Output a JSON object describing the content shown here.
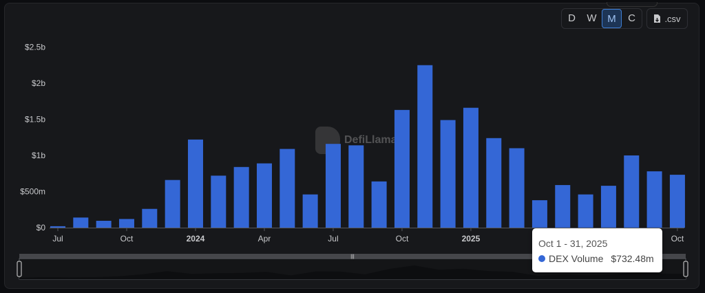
{
  "controls": {
    "intervals": [
      "D",
      "W",
      "M",
      "C"
    ],
    "active": "M",
    "csv_label": ".csv",
    "csv_icon": "file-download-icon"
  },
  "watermark": "DefiLlama",
  "tooltip": {
    "date": "Oct 1 - 31, 2025",
    "series": "DEX Volume",
    "value": "$732.48m"
  },
  "colors": {
    "bar": "#3467d6",
    "background": "#17181b"
  },
  "chart_data": {
    "type": "bar",
    "x": [
      "2023-07",
      "2023-08",
      "2023-09",
      "2023-10",
      "2023-11",
      "2023-12",
      "2024-01",
      "2024-02",
      "2024-03",
      "2024-04",
      "2024-05",
      "2024-06",
      "2024-07",
      "2024-08",
      "2024-09",
      "2024-10",
      "2024-11",
      "2024-12",
      "2025-01",
      "2025-02",
      "2025-03",
      "2025-04",
      "2025-05",
      "2025-06",
      "2025-07",
      "2025-08",
      "2025-09",
      "2025-10"
    ],
    "series": [
      {
        "name": "DEX Volume",
        "values": [
          0.02,
          0.14,
          0.095,
          0.12,
          0.26,
          0.66,
          1.22,
          0.72,
          0.84,
          0.89,
          1.09,
          0.46,
          1.16,
          1.14,
          0.64,
          1.63,
          2.25,
          1.49,
          1.66,
          1.24,
          1.1,
          0.38,
          0.59,
          0.46,
          0.58,
          1.0,
          0.78,
          0.73248
        ]
      }
    ],
    "unit": "USD billions",
    "ylim": [
      0,
      2.5
    ],
    "yticks": [
      {
        "v": 0,
        "label": "$0"
      },
      {
        "v": 0.5,
        "label": "$500m"
      },
      {
        "v": 1,
        "label": "$1b"
      },
      {
        "v": 1.5,
        "label": "$1.5b"
      },
      {
        "v": 2,
        "label": "$2b"
      },
      {
        "v": 2.5,
        "label": "$2.5b"
      }
    ],
    "xticks": [
      {
        "i": 0,
        "label": "Jul",
        "bold": false
      },
      {
        "i": 3,
        "label": "Oct",
        "bold": false
      },
      {
        "i": 6,
        "label": "2024",
        "bold": true
      },
      {
        "i": 9,
        "label": "Apr",
        "bold": false
      },
      {
        "i": 12,
        "label": "Jul",
        "bold": false
      },
      {
        "i": 15,
        "label": "Oct",
        "bold": false
      },
      {
        "i": 18,
        "label": "2025",
        "bold": true
      },
      {
        "i": 27,
        "label": "Oct",
        "bold": false
      }
    ],
    "grid": false,
    "legend": "none",
    "brush": true
  }
}
